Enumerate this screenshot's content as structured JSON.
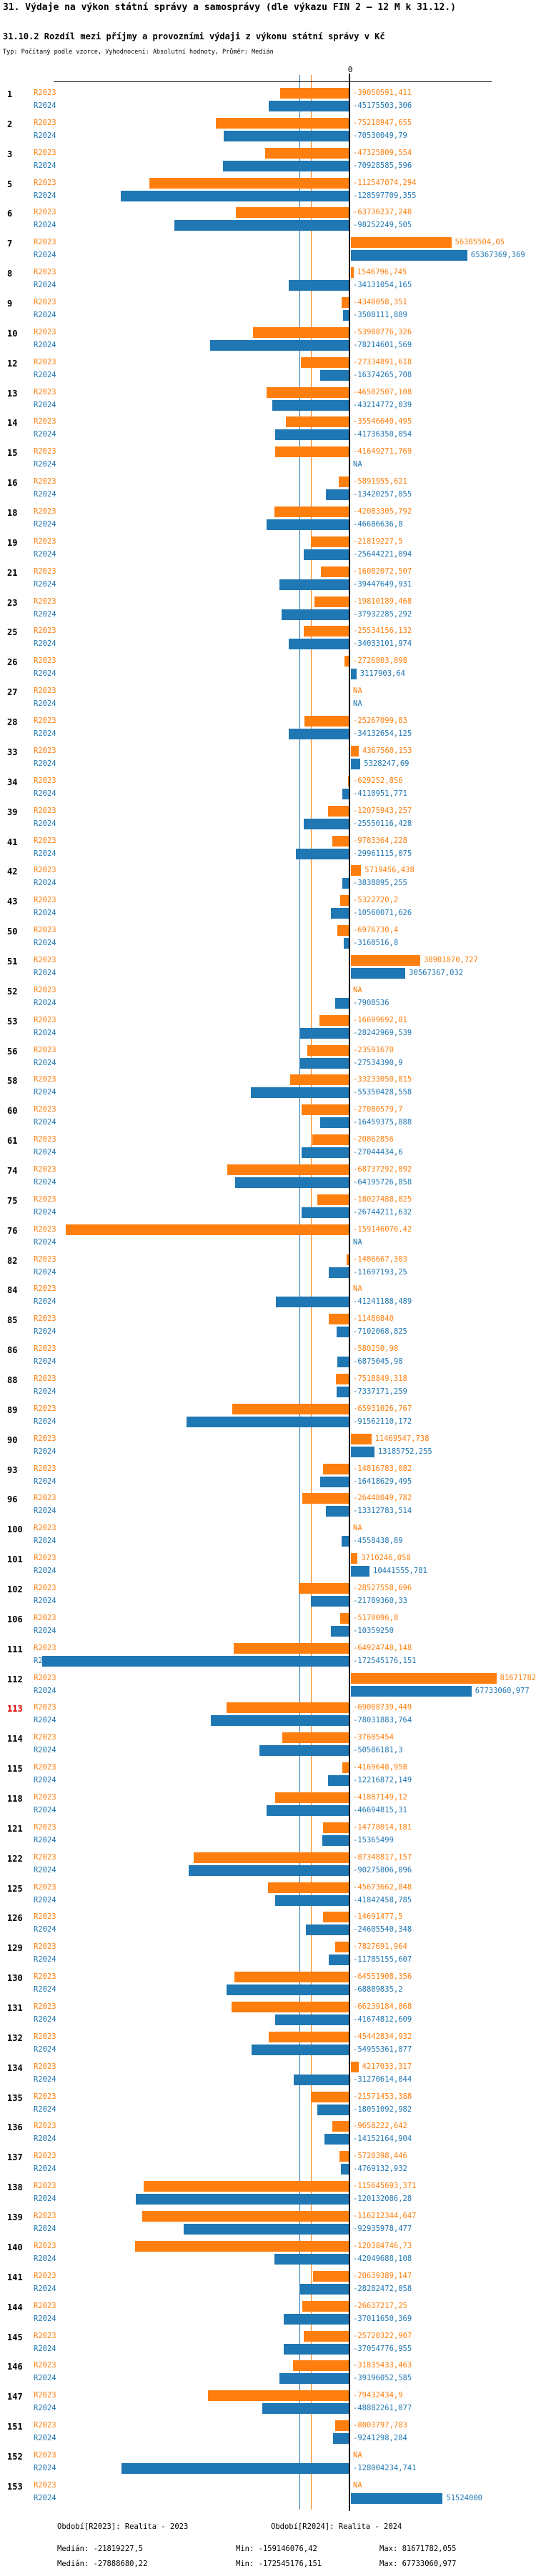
{
  "header": {
    "title": "31. Výdaje na výkon státní správy a samosprávy (dle výkazu FIN 2 – 12 M k 31.12.)",
    "subtitle": "31.10.2 Rozdíl mezi příjmy a provozními výdaji z výkonu státní správy v Kč",
    "meta": "Typ: Počítaný podle vzorce, Vyhodnocení: Absolutní hodnoty, Průměr: Medián"
  },
  "chart_data": {
    "type": "bar",
    "orientation": "horizontal",
    "title": "31.10.2 Rozdíl mezi příjmy a provozními výdaji z výkonu státní správy v Kč",
    "x_axis": {
      "zero_label": "0",
      "unit": "Kč"
    },
    "na_label": "NA",
    "highlighted_category": "113",
    "highlight_color": "#e00000",
    "categories": [
      "1",
      "2",
      "3",
      "5",
      "6",
      "7",
      "8",
      "9",
      "10",
      "12",
      "13",
      "14",
      "15",
      "16",
      "18",
      "19",
      "21",
      "23",
      "25",
      "26",
      "27",
      "28",
      "33",
      "34",
      "39",
      "41",
      "42",
      "43",
      "50",
      "51",
      "52",
      "53",
      "56",
      "58",
      "60",
      "61",
      "74",
      "75",
      "76",
      "82",
      "84",
      "85",
      "86",
      "88",
      "89",
      "90",
      "93",
      "96",
      "100",
      "101",
      "102",
      "106",
      "111",
      "112",
      "113",
      "114",
      "115",
      "118",
      "121",
      "122",
      "125",
      "126",
      "129",
      "130",
      "131",
      "132",
      "134",
      "135",
      "136",
      "137",
      "138",
      "139",
      "140",
      "141",
      "144",
      "145",
      "146",
      "147",
      "151",
      "152",
      "153"
    ],
    "series": [
      {
        "name": "R2023",
        "color": "#ff7f0e",
        "median": -21819227.5,
        "min": -159146076.42,
        "max": 81671782.055,
        "labels": [
          "-39050591,411",
          "-75218947,655",
          "-47325809,554",
          "-112547074,294",
          "-63736237,248",
          "56385504,05",
          "1546796,745",
          "-4340058,351",
          "-53988776,326",
          "-27334891,618",
          "-46502507,108",
          "-35546640,495",
          "-41649271,769",
          "-5891955,621",
          "-42083305,792",
          "-21819227,5",
          "-16082072,507",
          "-19810189,468",
          "-25534156,132",
          "-2726803,898",
          "NA",
          "-25267099,83",
          "4367560,153",
          "-629252,856",
          "-12075943,257",
          "-9783364,228",
          "5719456,438",
          "-5322720,2",
          "-6976730,4",
          "38901070,727",
          "NA",
          "-16699692,81",
          "-23591670",
          "-33233050,815",
          "-27080579,7",
          "-20862856",
          "-68737292,892",
          "-18027488,825",
          "-159146076,42",
          "-1486667,303",
          "NA",
          "-11480840",
          "-580250,98",
          "-7518849,318",
          "-65931026,767",
          "11469547,738",
          "-14816783,082",
          "-26448049,782",
          "NA",
          "3710246,058",
          "-28527558,696",
          "-5170096,8",
          "-64924748,148",
          "81671782,055",
          "-69008739,449",
          "-37605454",
          "-4169648,958",
          "-41887149,12",
          "-14778014,181",
          "-87348817,157",
          "-45673662,848",
          "-14691477,5",
          "-7827691,964",
          "-64551908,356",
          "-66239184,868",
          "-45442834,932",
          "4217033,317",
          "-21571453,388",
          "-9658222,642",
          "-5720398,446",
          "-115645693,371",
          "-116212344,647",
          "-120384746,73",
          "-20639389,147",
          "-26637217,25",
          "-25720322,907",
          "-31835433,463",
          "-79432434,9",
          "-8003797,783",
          "NA",
          "NA"
        ]
      },
      {
        "name": "R2024",
        "color": "#1f77b4",
        "median": -27888680.22,
        "min": -172545176.151,
        "max": 67733060.977,
        "labels": [
          "-45175503,306",
          "-70530049,79",
          "-70928585,596",
          "-128597709,355",
          "-98252249,505",
          "65367369,369",
          "-34131054,165",
          "-3508111,889",
          "-78214601,569",
          "-16374265,708",
          "-43214772,039",
          "-41736350,054",
          "NA",
          "-13420257,055",
          "-46686636,8",
          "-25644221,094",
          "-39447649,931",
          "-37932285,292",
          "-34033101,974",
          "3117903,64",
          "NA",
          "-34132654,125",
          "5328247,69",
          "-4110951,771",
          "-25550116,428",
          "-29961115,075",
          "-3838895,255",
          "-10560071,626",
          "-3160516,8",
          "30567367,032",
          "-7908536",
          "-28242969,539",
          "-27534390,9",
          "-55350428,558",
          "-16459375,888",
          "-27044434,6",
          "-64195726,858",
          "-26744211,632",
          "NA",
          "-11697193,25",
          "-41241188,489",
          "-7102068,825",
          "-6875045,98",
          "-7337171,259",
          "-91562110,172",
          "13185752,255",
          "-16418629,495",
          "-13312783,514",
          "-4558438,89",
          "10441555,781",
          "-21789360,33",
          "-10359250",
          "-172545176,151",
          "67733060,977",
          "-78031883,764",
          "-50506181,3",
          "-12216872,149",
          "-46694815,31",
          "-15365499",
          "-90275806,096",
          "-41842458,785",
          "-24605540,348",
          "-11785155,607",
          "-68889835,2",
          "-41674812,609",
          "-54955361,877",
          "-31270614,044",
          "-18051092,982",
          "-14152164,904",
          "-4769132,932",
          "-120132086,28",
          "-92935978,477",
          "-42049688,108",
          "-28282472,058",
          "-37011650,369",
          "-37054776,955",
          "-39196052,585",
          "-48882261,077",
          "-9241298,284",
          "-128004234,741",
          "51524000"
        ]
      }
    ]
  },
  "footer": {
    "r2023": {
      "period": "Období[R2023]: Realita - 2023",
      "median": "Medián: -21819227,5",
      "min": "Min: -159146076,42",
      "max": "Max: 81671782,055"
    },
    "r2024": {
      "period": "Období[R2024]: Realita - 2024",
      "median": "Medián: -27888680,22",
      "min": "Min: -172545176,151",
      "max": "Max: 67733060,977"
    }
  }
}
